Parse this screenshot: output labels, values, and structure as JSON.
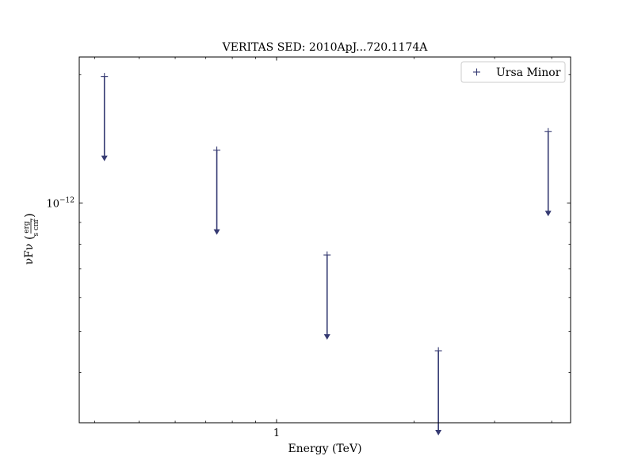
{
  "chart_data": {
    "type": "scatter",
    "title": "VERITAS SED: 2010ApJ...720.1174A",
    "xlabel": "Energy (TeV)",
    "ylabel": "νFν (erg / s cm²)",
    "ylabel_parts": {
      "main": "νFν",
      "num": "erg",
      "den": "s cm",
      "sup": "2"
    },
    "xscale": "log",
    "yscale": "log",
    "xlim": [
      0.37,
      4.4
    ],
    "ylim": [
      3.05e-13,
      2.2e-12
    ],
    "x_ticks": [
      {
        "value": 1,
        "label": "1"
      }
    ],
    "y_ticks": [
      {
        "value": 1e-12,
        "base": "10",
        "exp": "−12"
      }
    ],
    "legend": {
      "position": "top-right",
      "entries": [
        {
          "marker": "+",
          "label": "Ursa Minor"
        }
      ]
    },
    "series": [
      {
        "name": "Ursa Minor",
        "color": "#353a72",
        "marker": "+",
        "upper_limits": true,
        "points": [
          {
            "x": 0.42,
            "y": 1.98e-12
          },
          {
            "x": 0.74,
            "y": 1.33e-12
          },
          {
            "x": 1.29,
            "y": 7.55e-13
          },
          {
            "x": 2.26,
            "y": 4.5e-13
          },
          {
            "x": 3.93,
            "y": 1.47e-12
          }
        ]
      }
    ]
  }
}
